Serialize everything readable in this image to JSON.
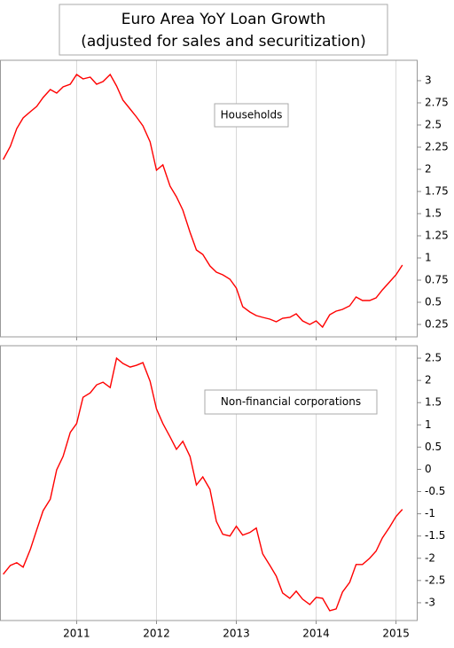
{
  "title": [
    "Euro Area YoY Loan Growth",
    "(adjusted for sales and securitization)"
  ],
  "chart_data": [
    {
      "type": "line",
      "annotation": "Households",
      "x": [
        2010.08,
        2010.17,
        2010.25,
        2010.33,
        2010.42,
        2010.5,
        2010.58,
        2010.67,
        2010.75,
        2010.83,
        2010.92,
        2011.0,
        2011.08,
        2011.17,
        2011.25,
        2011.33,
        2011.42,
        2011.5,
        2011.58,
        2011.67,
        2011.75,
        2011.83,
        2011.92,
        2012.0,
        2012.08,
        2012.17,
        2012.25,
        2012.33,
        2012.42,
        2012.5,
        2012.58,
        2012.67,
        2012.75,
        2012.83,
        2012.92,
        2013.0,
        2013.08,
        2013.17,
        2013.25,
        2013.33,
        2013.42,
        2013.5,
        2013.58,
        2013.67,
        2013.75,
        2013.83,
        2013.92,
        2014.0,
        2014.08,
        2014.17,
        2014.25,
        2014.33,
        2014.42,
        2014.5,
        2014.58,
        2014.67,
        2014.75,
        2014.83,
        2014.92,
        2015.0,
        2015.08
      ],
      "series": [
        {
          "color": "#ff0000",
          "values": [
            2.11,
            2.26,
            2.46,
            2.58,
            2.65,
            2.71,
            2.81,
            2.9,
            2.86,
            2.93,
            2.96,
            3.07,
            3.02,
            3.04,
            2.96,
            2.99,
            3.07,
            2.94,
            2.78,
            2.68,
            2.59,
            2.49,
            2.31,
            1.99,
            2.05,
            1.81,
            1.69,
            1.54,
            1.29,
            1.09,
            1.04,
            0.91,
            0.84,
            0.81,
            0.76,
            0.66,
            0.45,
            0.39,
            0.35,
            0.33,
            0.31,
            0.28,
            0.32,
            0.33,
            0.37,
            0.29,
            0.25,
            0.29,
            0.22,
            0.36,
            0.4,
            0.42,
            0.46,
            0.56,
            0.52,
            0.52,
            0.55,
            0.64,
            0.73,
            0.81,
            0.92
          ]
        }
      ],
      "xlim": [
        2010.04,
        2015.26
      ],
      "xticks": [
        2011,
        2012,
        2013,
        2014,
        2015
      ],
      "ylim": [
        0.11,
        3.23
      ],
      "yticks": [
        0.25,
        0.5,
        0.75,
        1,
        1.25,
        1.5,
        1.75,
        2,
        2.25,
        2.5,
        2.75,
        3
      ],
      "grid": true
    },
    {
      "type": "line",
      "annotation": "Non-financial corporations",
      "x": [
        2010.08,
        2010.17,
        2010.25,
        2010.33,
        2010.42,
        2010.5,
        2010.58,
        2010.67,
        2010.75,
        2010.83,
        2010.92,
        2011.0,
        2011.08,
        2011.17,
        2011.25,
        2011.33,
        2011.42,
        2011.5,
        2011.58,
        2011.67,
        2011.75,
        2011.83,
        2011.92,
        2012.0,
        2012.08,
        2012.17,
        2012.25,
        2012.33,
        2012.42,
        2012.5,
        2012.58,
        2012.67,
        2012.75,
        2012.83,
        2012.92,
        2013.0,
        2013.08,
        2013.17,
        2013.25,
        2013.33,
        2013.42,
        2013.5,
        2013.58,
        2013.67,
        2013.75,
        2013.83,
        2013.92,
        2014.0,
        2014.08,
        2014.17,
        2014.25,
        2014.33,
        2014.42,
        2014.5,
        2014.58,
        2014.67,
        2014.75,
        2014.83,
        2014.92,
        2015.0,
        2015.08
      ],
      "series": [
        {
          "color": "#ff0000",
          "values": [
            -2.36,
            -2.16,
            -2.1,
            -2.2,
            -1.8,
            -1.36,
            -0.93,
            -0.67,
            -0.01,
            0.29,
            0.83,
            1.03,
            1.62,
            1.72,
            1.9,
            1.96,
            1.84,
            2.5,
            2.38,
            2.3,
            2.34,
            2.4,
            1.98,
            1.36,
            1.03,
            0.73,
            0.45,
            0.63,
            0.29,
            -0.35,
            -0.17,
            -0.45,
            -1.17,
            -1.46,
            -1.5,
            -1.28,
            -1.48,
            -1.42,
            -1.32,
            -1.9,
            -2.16,
            -2.4,
            -2.78,
            -2.9,
            -2.74,
            -2.92,
            -3.04,
            -2.88,
            -2.9,
            -3.18,
            -3.14,
            -2.76,
            -2.54,
            -2.14,
            -2.14,
            -2,
            -1.84,
            -1.54,
            -1.3,
            -1.06,
            -0.9
          ]
        }
      ],
      "xlim": [
        2010.04,
        2015.26
      ],
      "xticks": [
        2011,
        2012,
        2013,
        2014,
        2015
      ],
      "ylim": [
        -3.4,
        2.78
      ],
      "yticks": [
        -3,
        -2.5,
        -2,
        -1.5,
        -1,
        -0.5,
        0,
        0.5,
        1,
        1.5,
        2,
        2.5
      ],
      "grid": true
    }
  ]
}
